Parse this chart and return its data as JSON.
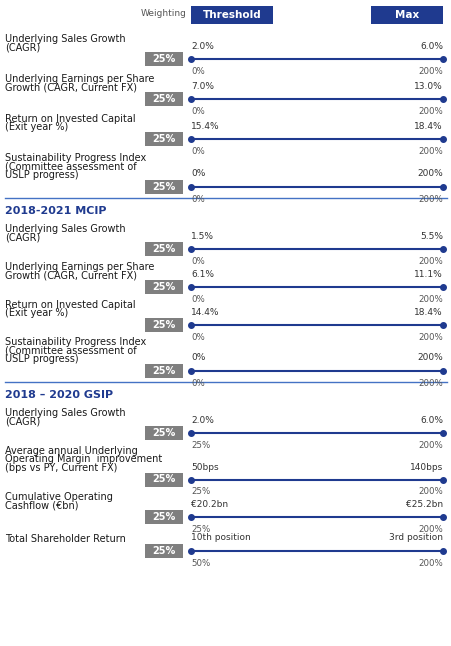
{
  "title_header": "Weighting",
  "col_threshold": "Threshold",
  "col_max": "Max",
  "header_bg": "#1f3a8f",
  "header_text": "#ffffff",
  "weighting_bg": "#7f7f7f",
  "weighting_text": "#ffffff",
  "line_color": "#1f3a8f",
  "dot_color": "#1f3a8f",
  "section_title_color": "#1f3a8f",
  "label_color": "#1a1a1a",
  "tick_color": "#555555",
  "separator_color": "#4472c4",
  "bg_color": "#ffffff",
  "figsize": [
    4.52,
    6.46
  ],
  "dpi": 100,
  "sections": [
    {
      "title": null,
      "rows": [
        {
          "label": "Underlying Sales Growth\n(CAGR)",
          "weighting": "25%",
          "threshold_val": "2.0%",
          "max_val": "6.0%",
          "tick_left": "0%",
          "tick_right": "200%"
        },
        {
          "label": "Underlying Earnings per Share\nGrowth (CAGR, Current FX)",
          "weighting": "25%",
          "threshold_val": "7.0%",
          "max_val": "13.0%",
          "tick_left": "0%",
          "tick_right": "200%"
        },
        {
          "label": "Return on Invested Capital\n(Exit year %)",
          "weighting": "25%",
          "threshold_val": "15.4%",
          "max_val": "18.4%",
          "tick_left": "0%",
          "tick_right": "200%"
        },
        {
          "label": "Sustainability Progress Index\n(Committee assessment of\nUSLP progress)",
          "weighting": "25%",
          "threshold_val": "0%",
          "max_val": "200%",
          "tick_left": "0%",
          "tick_right": "200%"
        }
      ]
    },
    {
      "title": "2018-2021 MCIP",
      "rows": [
        {
          "label": "Underlying Sales Growth\n(CAGR)",
          "weighting": "25%",
          "threshold_val": "1.5%",
          "max_val": "5.5%",
          "tick_left": "0%",
          "tick_right": "200%"
        },
        {
          "label": "Underlying Earnings per Share\nGrowth (CAGR, Current FX)",
          "weighting": "25%",
          "threshold_val": "6.1%",
          "max_val": "11.1%",
          "tick_left": "0%",
          "tick_right": "200%"
        },
        {
          "label": "Return on Invested Capital\n(Exit year %)",
          "weighting": "25%",
          "threshold_val": "14.4%",
          "max_val": "18.4%",
          "tick_left": "0%",
          "tick_right": "200%"
        },
        {
          "label": "Sustainability Progress Index\n(Committee assessment of\nUSLP progress)",
          "weighting": "25%",
          "threshold_val": "0%",
          "max_val": "200%",
          "tick_left": "0%",
          "tick_right": "200%"
        }
      ]
    },
    {
      "title": "2018 – 2020 GSIP",
      "rows": [
        {
          "label": "Underlying Sales Growth\n(CAGR)",
          "weighting": "25%",
          "threshold_val": "2.0%",
          "max_val": "6.0%",
          "tick_left": "25%",
          "tick_right": "200%"
        },
        {
          "label": "Average annual Underlying\nOperating Margin  improvement\n(bps vs PY, Current FX)",
          "weighting": "25%",
          "threshold_val": "50bps",
          "max_val": "140bps",
          "tick_left": "25%",
          "tick_right": "200%"
        },
        {
          "label": "Cumulative Operating\nCashflow (€bn)",
          "weighting": "25%",
          "threshold_val": "€20.2bn",
          "max_val": "€25.2bn",
          "tick_left": "25%",
          "tick_right": "200%"
        },
        {
          "label": "Total Shareholder Return",
          "weighting": "25%",
          "threshold_val": "10th position",
          "max_val": "3rd position",
          "tick_left": "50%",
          "tick_right": "200%"
        }
      ]
    }
  ]
}
